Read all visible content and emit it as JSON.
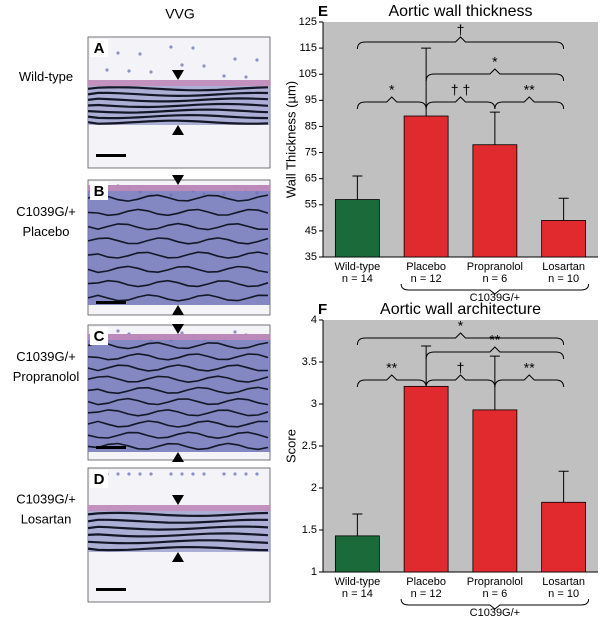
{
  "histology": {
    "stain": "VVG",
    "panels": [
      {
        "letter": "A",
        "label": [
          "Wild-type"
        ]
      },
      {
        "letter": "B",
        "label": [
          "C1039G/+",
          "Placebo"
        ]
      },
      {
        "letter": "C",
        "label": [
          "C1039G/+",
          "Propranolol"
        ]
      },
      {
        "letter": "D",
        "label": [
          "C1039G/+",
          "Losartan"
        ]
      }
    ]
  },
  "chart_data": [
    {
      "type": "bar",
      "panel": "E",
      "title": "Aortic wall thickness",
      "ylabel": "Wall Thickness (µm)",
      "categories": [
        "Wild-type",
        "Placebo",
        "Propranolol",
        "Losartan"
      ],
      "category_notes": [
        "n = 14",
        "n = 12",
        "n = 6",
        "n = 10"
      ],
      "group": {
        "label": "C1039G/+",
        "from": 1,
        "to": 3
      },
      "values": [
        57,
        89,
        78,
        49
      ],
      "errors": [
        9,
        26,
        12.5,
        8.5
      ],
      "colors": [
        "#1b6b3a",
        "#e02a2e",
        "#e02a2e",
        "#e02a2e"
      ],
      "ylim": [
        35,
        125
      ],
      "yticks": [
        35,
        45,
        55,
        65,
        75,
        85,
        95,
        105,
        115,
        125
      ],
      "annotations": [
        {
          "from": 0,
          "to": 1,
          "label": "*"
        },
        {
          "from": 1,
          "to": 2,
          "label": "† †"
        },
        {
          "from": 2,
          "to": 3,
          "label": "**"
        },
        {
          "from": 1,
          "to": 3,
          "label": "*"
        },
        {
          "from": 0,
          "to": 3,
          "label": "†"
        }
      ]
    },
    {
      "type": "bar",
      "panel": "F",
      "title": "Aortic wall architecture",
      "ylabel": "Score",
      "categories": [
        "Wild-type",
        "Placebo",
        "Propranolol",
        "Losartan"
      ],
      "category_notes": [
        "n = 14",
        "n = 12",
        "n = 6",
        "n = 10"
      ],
      "group": {
        "label": "C1039G/+",
        "from": 1,
        "to": 3
      },
      "values": [
        1.43,
        3.21,
        2.93,
        1.83
      ],
      "errors": [
        0.26,
        0.48,
        0.64,
        0.37
      ],
      "colors": [
        "#1b6b3a",
        "#e02a2e",
        "#e02a2e",
        "#e02a2e"
      ],
      "ylim": [
        1,
        4
      ],
      "yticks": [
        1,
        1.5,
        2,
        2.5,
        3,
        3.5,
        4
      ],
      "annotations": [
        {
          "from": 0,
          "to": 1,
          "label": "**"
        },
        {
          "from": 1,
          "to": 2,
          "label": "†"
        },
        {
          "from": 2,
          "to": 3,
          "label": "**"
        },
        {
          "from": 1,
          "to": 3,
          "label": "**"
        },
        {
          "from": 0,
          "to": 3,
          "label": "*"
        }
      ]
    }
  ]
}
